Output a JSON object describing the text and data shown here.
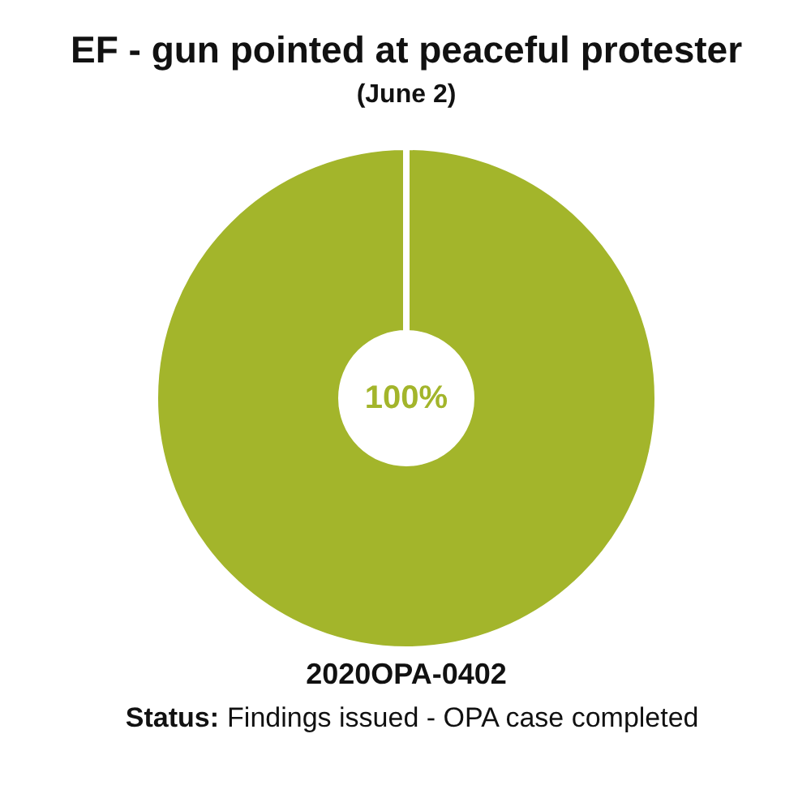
{
  "chart_data": {
    "type": "pie",
    "title": "EF - gun pointed at peaceful protester",
    "subtitle": "(June 2)",
    "categories": [
      null
    ],
    "values": [
      100
    ],
    "colors": [
      "#a3b52b"
    ],
    "value_labels": [
      "100%"
    ],
    "annotations": [
      "2020OPA-0402",
      "Status: Findings issued - OPA case completed"
    ]
  }
}
